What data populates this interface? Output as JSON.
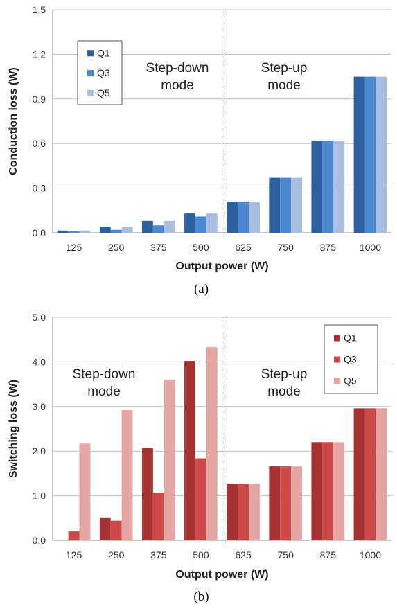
{
  "colors": {
    "grid": "#bfbfbf",
    "axis": "#8c8c8c",
    "text": "#333333",
    "blue_q1": "#2e5f9e",
    "blue_q3": "#4a89d0",
    "blue_q5": "#a8bee0",
    "red_q1": "#a63232",
    "red_q3": "#cc4a47",
    "red_q5": "#e4a5a4"
  },
  "chart_data": [
    {
      "id": "a",
      "type": "bar",
      "caption": "(a)",
      "xlabel": "Output power (W)",
      "ylabel": "Conduction loss (W)",
      "ylim": [
        0,
        1.5
      ],
      "yticks": [
        "0.0",
        "0.3",
        "0.6",
        "0.9",
        "1.2",
        "1.5"
      ],
      "categories": [
        "125",
        "250",
        "375",
        "500",
        "625",
        "750",
        "875",
        "1000"
      ],
      "series": [
        {
          "name": "Q1",
          "color": "#2e5f9e",
          "values": [
            0.015,
            0.04,
            0.08,
            0.13,
            0.21,
            0.37,
            0.62,
            1.05
          ]
        },
        {
          "name": "Q3",
          "color": "#4a89d0",
          "values": [
            0.01,
            0.02,
            0.05,
            0.11,
            0.21,
            0.37,
            0.62,
            1.05
          ]
        },
        {
          "name": "Q5",
          "color": "#a8bee0",
          "values": [
            0.015,
            0.04,
            0.08,
            0.13,
            0.21,
            0.37,
            0.62,
            1.05
          ]
        }
      ],
      "divider_after_category": "500",
      "region_labels": {
        "left": [
          "Step-down",
          "mode"
        ],
        "right": [
          "Step-up",
          "mode"
        ]
      },
      "legend_position": "top-left",
      "grid": true
    },
    {
      "id": "b",
      "type": "bar",
      "caption": "(b)",
      "xlabel": "Output power (W)",
      "ylabel": "Switching loss (W)",
      "ylim": [
        0,
        5.0
      ],
      "yticks": [
        "0.0",
        "1.0",
        "2.0",
        "3.0",
        "4.0",
        "5.0"
      ],
      "categories": [
        "125",
        "250",
        "375",
        "500",
        "625",
        "750",
        "875",
        "1000"
      ],
      "series": [
        {
          "name": "Q1",
          "color": "#a63232",
          "values": [
            0.0,
            0.5,
            2.07,
            4.02,
            1.27,
            1.66,
            2.2,
            2.96
          ]
        },
        {
          "name": "Q3",
          "color": "#cc4a47",
          "values": [
            0.2,
            0.44,
            1.07,
            1.84,
            1.27,
            1.66,
            2.2,
            2.96
          ]
        },
        {
          "name": "Q5",
          "color": "#e4a5a4",
          "values": [
            2.17,
            2.92,
            3.6,
            4.33,
            1.27,
            1.66,
            2.2,
            2.96
          ]
        }
      ],
      "divider_after_category": "500",
      "region_labels": {
        "left": [
          "Step-down",
          "mode"
        ],
        "right": [
          "Step-up",
          "mode"
        ]
      },
      "legend_position": "top-right",
      "grid": true
    }
  ]
}
